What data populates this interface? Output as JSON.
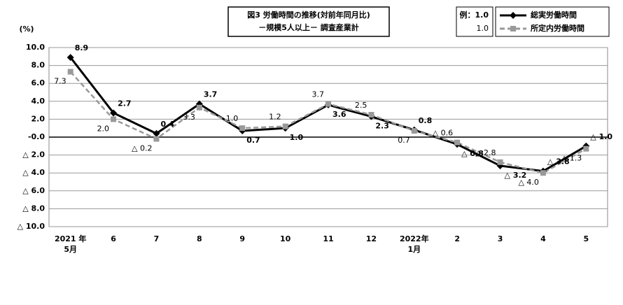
{
  "chart_data": {
    "type": "line",
    "title": [
      "図3 労働時間の推移(対前年同月比)",
      "－規模5人以上－ 調査産業計"
    ],
    "y_label": "(%)",
    "legend_example": [
      "例：1.0",
      "1.0"
    ],
    "categories": [
      "2021 年\n5月",
      "6",
      "7",
      "8",
      "9",
      "10",
      "11",
      "12",
      "2022年\n1月",
      "2",
      "3",
      "4",
      "5"
    ],
    "series": [
      {
        "name": "総実労働時間",
        "color": "#000000",
        "marker": "diamond",
        "dash": false,
        "values": [
          8.9,
          2.7,
          0.4,
          3.7,
          0.7,
          1.0,
          3.6,
          2.3,
          0.8,
          -0.8,
          -3.2,
          -3.8,
          -1.0
        ],
        "value_labels": [
          "8.9",
          "2.7",
          "0.4",
          "3.7",
          "0.7",
          "1.0",
          "3.6",
          "2.3",
          "0.8",
          "△ 0.8",
          "△ 3.2",
          "△ 3.8",
          "△ 1.0"
        ]
      },
      {
        "name": "所定内労働時間",
        "color": "#999999",
        "marker": "square",
        "dash": true,
        "values": [
          7.3,
          2.0,
          -0.2,
          3.3,
          1.0,
          1.2,
          3.7,
          2.5,
          0.7,
          -0.6,
          -2.8,
          -4.0,
          -1.3
        ],
        "value_labels": [
          "7.3",
          "2.0",
          "△ 0.2",
          "3.3",
          "1.0",
          "1.2",
          "3.7",
          "2.5",
          "0.7",
          "△ 0.6",
          "△ 2.8",
          "△ 4.0",
          "△ 1.3"
        ]
      }
    ],
    "ylim": [
      -10,
      10
    ],
    "yticks": [
      {
        "value": 10,
        "label": "10.0"
      },
      {
        "value": 8,
        "label": "8.0"
      },
      {
        "value": 6,
        "label": "6.0"
      },
      {
        "value": 4,
        "label": "4.0"
      },
      {
        "value": 2,
        "label": "2.0"
      },
      {
        "value": 0,
        "label": "-0.0"
      },
      {
        "value": -2,
        "label": "△ 2.0"
      },
      {
        "value": -4,
        "label": "△ 4.0"
      },
      {
        "value": -6,
        "label": "△ 6.0"
      },
      {
        "value": -8,
        "label": "△ 8.0"
      },
      {
        "value": -10,
        "label": "△ 10.0"
      }
    ],
    "grid": true
  }
}
